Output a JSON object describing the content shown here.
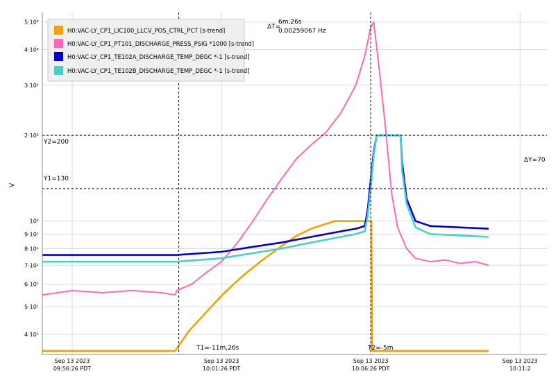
{
  "colors": {
    "orange": "#f5a100",
    "pink": "#ff69b4",
    "blue": "#0000d0",
    "teal": "#48d1cc",
    "grid": "#d9d9d9",
    "cursor": "#000000"
  },
  "axis": {
    "y_label": "V",
    "y_scale": "log",
    "y_ticks": [
      {
        "value": 40,
        "label": "4·10¹"
      },
      {
        "value": 50,
        "label": "5·10¹"
      },
      {
        "value": 60,
        "label": "6·10¹"
      },
      {
        "value": 70,
        "label": "7·10¹"
      },
      {
        "value": 80,
        "label": "8·10¹"
      },
      {
        "value": 90,
        "label": "9·10¹"
      },
      {
        "value": 100,
        "label": "10²"
      },
      {
        "value": 200,
        "label": "2·10²"
      },
      {
        "value": 300,
        "label": "3·10²"
      },
      {
        "value": 400,
        "label": "4·10²"
      },
      {
        "value": 500,
        "label": "5·10²"
      }
    ],
    "x_ticks": [
      {
        "line1": "Sep 13 2023",
        "line2": "09:56:26 PDT"
      },
      {
        "line1": "Sep 13 2023",
        "line2": "10:01:26 PDT"
      },
      {
        "line1": "Sep 13 2023",
        "line2": "10:06:26 PDT"
      },
      {
        "line1": "Sep 13 2023",
        "line2": "10:11:2"
      }
    ]
  },
  "cursors": {
    "t1_label": "T1=-11m,26s",
    "t2_label": "T2=-5m",
    "dt_label": "ΔT=",
    "dt_value": "6m,26s",
    "dt_freq": "0.00259067 Hz",
    "y1_label": "Y1=130",
    "y2_label": "Y2=200",
    "dy_label": "ΔY=70",
    "y1": 130,
    "y2": 200
  },
  "legend": [
    {
      "label": "H0:VAC-LY_CP1_LIC100_LLCV_POS_CTRL_PCT [s-trend]",
      "color": "#f5a100"
    },
    {
      "label": "H0:VAC-LY_CP1_PT101_DISCHARGE_PRESS_PSIG *1000 [s-trend]",
      "color": "#ff69b4"
    },
    {
      "label": "H0:VAC-LY_CP1_TE102A_DISCHARGE_TEMP_DEGC *-1 [s-trend]",
      "color": "#0000d0"
    },
    {
      "label": "H0:VAC-LY_CP1_TE102B_DISCHARGE_TEMP_DEGC *-1 [s-trend]",
      "color": "#48d1cc"
    }
  ],
  "chart_data": {
    "type": "line",
    "x_unit": "minutes relative to 10:06:26 PDT",
    "y_scale": "log",
    "ylim": [
      34,
      540
    ],
    "xlim": [
      -11,
      5.9
    ],
    "ylabel": "V",
    "grid": true,
    "legend_position": "top-left",
    "series": [
      {
        "name": "H0:VAC-LY_CP1_LIC100_LLCV_POS_CTRL_PCT [s-trend]",
        "color": "#f5a100",
        "x": [
          -11,
          -6.55,
          -6.43,
          -6.1,
          -5.5,
          -4.9,
          -4.3,
          -3.7,
          -3.1,
          -2.55,
          -2.0,
          -1.6,
          -1.2,
          -0.8,
          -0.4,
          -0.05,
          0.02,
          0.05,
          3.95
        ],
        "y": [
          35,
          35,
          36.5,
          41,
          48,
          56,
          64,
          72,
          80,
          88,
          94,
          97,
          100,
          100,
          100,
          100,
          100,
          35,
          35
        ]
      },
      {
        "name": "H0:VAC-LY_CP1_PT101_DISCHARGE_PRESS_PSIG *1000 [s-trend]",
        "color": "#ff69b4",
        "x": [
          -11,
          -10,
          -9,
          -8,
          -7,
          -6.55,
          -6.5,
          -6,
          -5.5,
          -5,
          -4.5,
          -4,
          -3.5,
          -3,
          -2.5,
          -2,
          -1.5,
          -1,
          -0.5,
          -0.2,
          0,
          0.1,
          0.3,
          0.5,
          0.7,
          0.9,
          1.2,
          1.5,
          2,
          2.5,
          3,
          3.5,
          3.95
        ],
        "y": [
          55,
          57,
          56,
          57,
          56,
          55,
          57,
          60,
          66,
          72,
          83,
          98,
          118,
          140,
          165,
          185,
          205,
          240,
          300,
          380,
          480,
          500,
          330,
          210,
          125,
          95,
          80,
          74,
          72,
          73,
          71,
          72,
          70
        ]
      },
      {
        "name": "H0:VAC-LY_CP1_TE102A_DISCHARGE_TEMP_DEGC *-1 [s-trend]",
        "color": "#0000d0",
        "x": [
          -11,
          -9,
          -7,
          -6.55,
          -6.5,
          -5,
          -4,
          -3,
          -2,
          -1,
          -0.5,
          -0.2,
          -0.1,
          0,
          0.1,
          0.2,
          0.3,
          1.0,
          1.05,
          1.2,
          1.5,
          2,
          3,
          3.95
        ],
        "y": [
          76,
          76,
          76,
          76,
          76,
          78,
          81,
          84,
          88,
          92,
          94,
          96,
          110,
          140,
          175,
          200,
          200,
          200,
          160,
          120,
          100,
          96,
          95,
          94
        ]
      },
      {
        "name": "H0:VAC-LY_CP1_TE102B_DISCHARGE_TEMP_DEGC *-1 [s-trend]",
        "color": "#48d1cc",
        "x": [
          -11,
          -9,
          -7,
          -6.55,
          -6.5,
          -5,
          -4,
          -3,
          -2,
          -1,
          -0.5,
          -0.2,
          -0.1,
          0,
          0.1,
          0.2,
          0.3,
          1.0,
          1.05,
          1.2,
          1.5,
          2,
          3,
          3.95
        ],
        "y": [
          72,
          72,
          72,
          72,
          72,
          74,
          77,
          80,
          84,
          88,
          90,
          92,
          105,
          130,
          170,
          200,
          200,
          200,
          150,
          115,
          95,
          90,
          89,
          88
        ]
      }
    ],
    "cursors_x": [
      -6.43,
      0
    ]
  }
}
